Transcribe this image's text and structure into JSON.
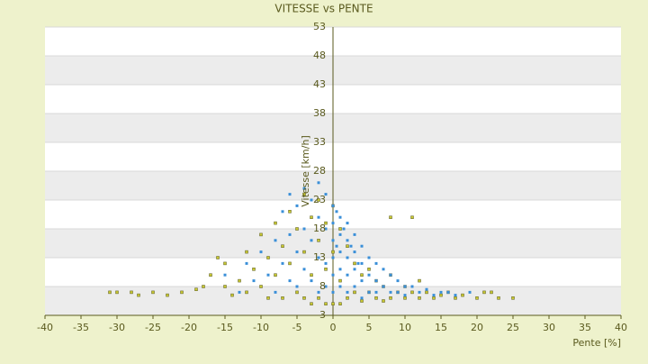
{
  "chart_data": {
    "type": "scatter",
    "title": "VITESSE vs PENTE",
    "x_label": "Pente [%]",
    "y_label": "Vitesse [km/h]",
    "xlim": [
      -40,
      40
    ],
    "xticks": [
      -40,
      -35,
      -30,
      -25,
      -20,
      -15,
      -10,
      -5,
      0,
      5,
      10,
      15,
      20,
      25,
      30,
      35,
      40
    ],
    "ylim": [
      3,
      53
    ],
    "yticks": [
      3,
      8,
      13,
      18,
      23,
      28,
      33,
      38,
      43,
      48,
      53
    ],
    "grid": true,
    "series": [
      {
        "color": "#c8c832",
        "x": [
          -31,
          -30,
          -28,
          -27,
          -25,
          -23,
          -21,
          -19,
          -18,
          -17,
          -16,
          -15,
          -15,
          -14,
          -13,
          -12,
          -12,
          -11,
          -10,
          -10,
          -9,
          -9,
          -8,
          -8,
          -7,
          -7,
          -6,
          -6,
          -5,
          -5,
          -4,
          -4,
          -4,
          -3,
          -3,
          -3,
          -2,
          -2,
          -2,
          -1,
          -1,
          -1,
          0,
          0,
          0,
          1,
          1,
          1,
          2,
          2,
          3,
          3,
          4,
          4,
          5,
          5,
          6,
          6,
          7,
          7,
          8,
          8,
          9,
          10,
          10,
          11,
          12,
          12,
          13,
          14,
          15,
          16,
          17,
          18,
          20,
          21,
          22,
          23,
          25,
          8,
          11
        ],
        "values": [
          7,
          7,
          7,
          6.5,
          7,
          6.5,
          7,
          7.5,
          8,
          10,
          13,
          12,
          8,
          6.5,
          9,
          14,
          7,
          11,
          17,
          8,
          13,
          6,
          19,
          10,
          15,
          6,
          21,
          12,
          18,
          7,
          24,
          14,
          6,
          20,
          10,
          5,
          23,
          16,
          6,
          19,
          11,
          5,
          22,
          14,
          5,
          18,
          9,
          5,
          15,
          6,
          12,
          7,
          10,
          5.5,
          11,
          7,
          9,
          6,
          8,
          5.5,
          10,
          6,
          7,
          8,
          6,
          7,
          9,
          6,
          7,
          6,
          6.5,
          7,
          6,
          6.5,
          6,
          7,
          7,
          6,
          6,
          20,
          20
        ]
      },
      {
        "color": "#3a8fd8",
        "x": [
          -10,
          -9,
          -8,
          -8,
          -7,
          -7,
          -6,
          -6,
          -6,
          -5,
          -5,
          -5,
          -4,
          -4,
          -4,
          -3,
          -3,
          -3,
          -2,
          -2,
          -2,
          -2,
          -1,
          -1,
          -1,
          -1,
          0,
          0,
          0,
          0,
          0,
          0,
          0.5,
          0.5,
          1,
          1,
          1,
          1,
          1,
          1.5,
          2,
          2,
          2,
          2,
          2,
          2.5,
          3,
          3,
          3,
          3,
          3.5,
          4,
          4,
          4,
          4,
          5,
          5,
          5,
          6,
          6,
          6,
          7,
          7,
          8,
          8,
          9,
          9,
          10,
          10,
          11,
          12,
          13,
          14,
          15,
          16,
          17,
          19,
          -12,
          -11,
          -13,
          -15
        ],
        "values": [
          14,
          10,
          16,
          7,
          21,
          12,
          24,
          17,
          9,
          22,
          14,
          8,
          25,
          18,
          11,
          23,
          16,
          9,
          26,
          20,
          13,
          7,
          24,
          18,
          12,
          8,
          22,
          19,
          16,
          13,
          10,
          7,
          21,
          15,
          20,
          17,
          14,
          11,
          8,
          18,
          19,
          16,
          13,
          10,
          7,
          15,
          17,
          14,
          11,
          8,
          12,
          15,
          12,
          9,
          6,
          13,
          10,
          7,
          12,
          9,
          7,
          11,
          8,
          10,
          7,
          9,
          7,
          8,
          6.5,
          8,
          7,
          7.5,
          6.5,
          7,
          7,
          6.5,
          7,
          12,
          9,
          7,
          10
        ]
      }
    ]
  }
}
